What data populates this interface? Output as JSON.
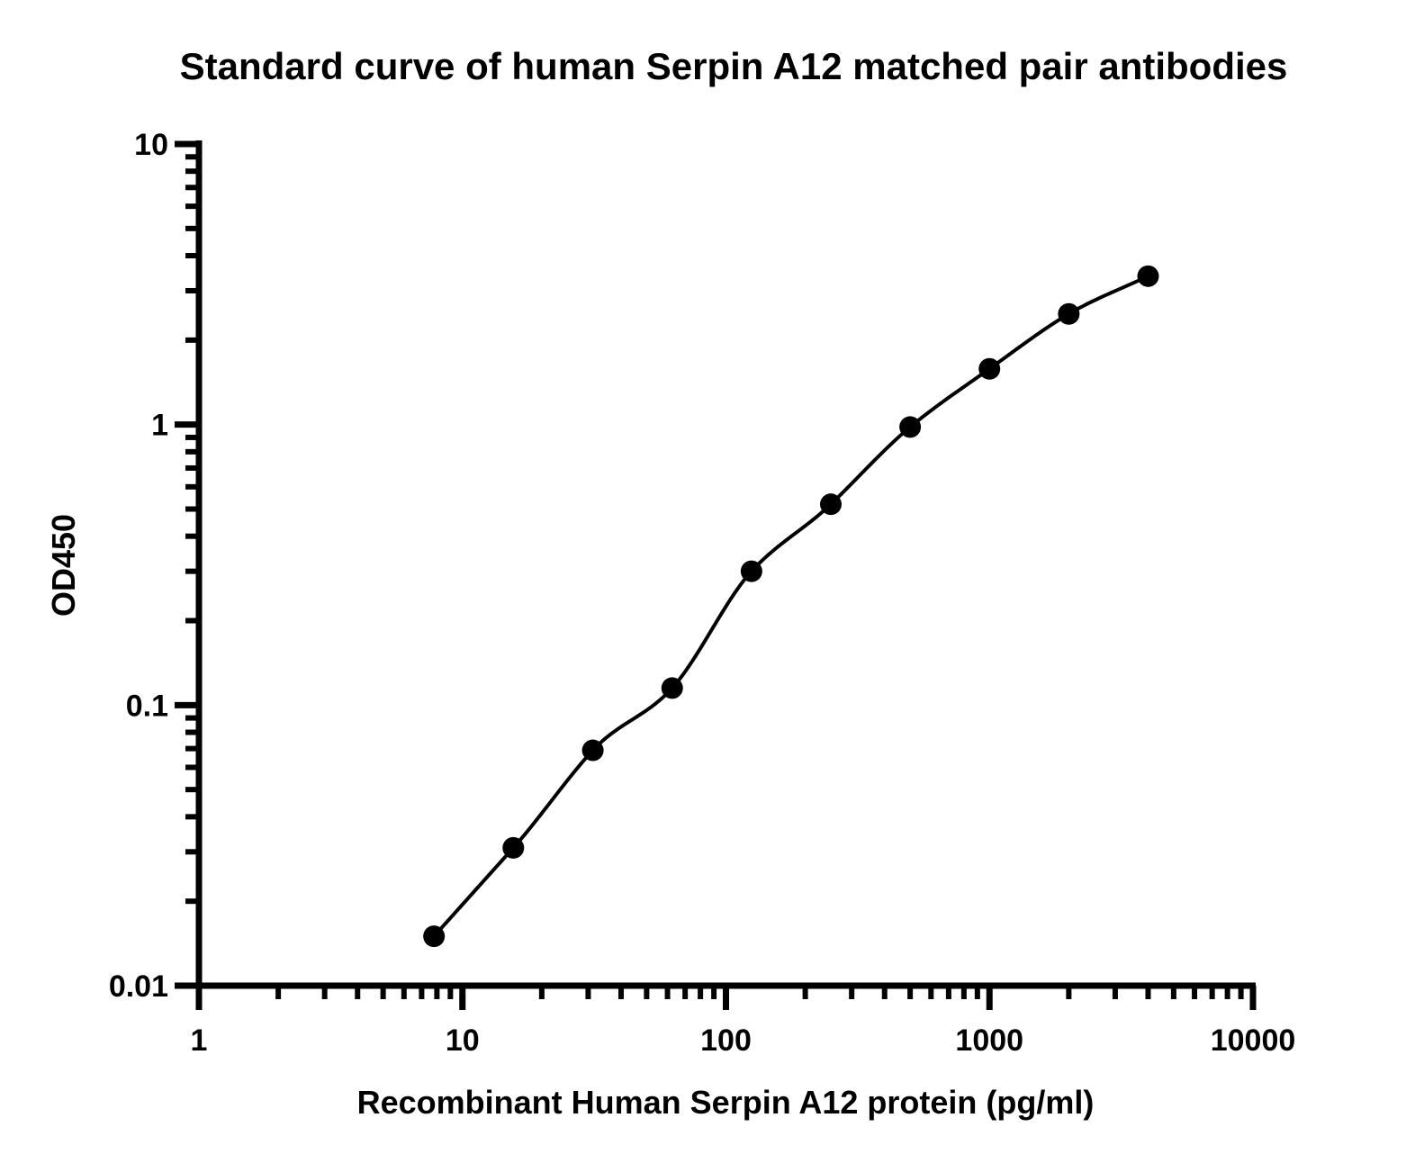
{
  "chart_data": {
    "type": "scatter",
    "title": "Standard curve of human Serpin A12 matched pair antibodies",
    "xlabel": "Recombinant Human Serpin A12 protein (pg/ml)",
    "ylabel": "OD450",
    "x_scale": "log",
    "y_scale": "log",
    "xlim": [
      1,
      10000
    ],
    "ylim": [
      0.01,
      10
    ],
    "x_ticks": [
      "1",
      "10",
      "100",
      "1000",
      "10000"
    ],
    "y_ticks": [
      "0.01",
      "0.1",
      "1",
      "10"
    ],
    "grid": false,
    "legend": "none",
    "fit_curve": true,
    "color": "#000000",
    "series": [
      {
        "x": [
          7.8,
          15.6,
          31.25,
          62.5,
          125,
          250,
          500,
          1000,
          2000,
          4000
        ],
        "y": [
          0.015,
          0.031,
          0.069,
          0.115,
          0.3,
          0.52,
          0.98,
          1.58,
          2.48,
          3.38
        ]
      }
    ]
  }
}
